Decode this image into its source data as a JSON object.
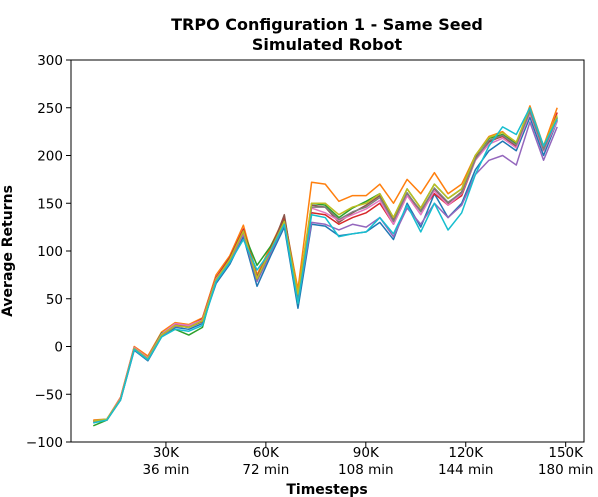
{
  "chart_data": {
    "type": "line",
    "title": "TRPO Configuration 1 - Same Seed",
    "subtitle": "Simulated Robot",
    "x_label": "Timesteps",
    "y_label": "Average Returns",
    "x": [
      8192,
      12288,
      16384,
      20480,
      24576,
      28672,
      32768,
      36864,
      40960,
      45056,
      49152,
      53248,
      57344,
      61440,
      65536,
      69632,
      73728,
      77824,
      81920,
      86016,
      90112,
      94208,
      98304,
      102400,
      106496,
      110592,
      114688,
      118784,
      122880,
      126976,
      131072,
      135168,
      139264,
      143360,
      147456
    ],
    "xlim": [
      1500,
      155500
    ],
    "xticks": [
      {
        "value": 30000,
        "label": "30K\n36 min"
      },
      {
        "value": 60000,
        "label": "60K\n72 min"
      },
      {
        "value": 90000,
        "label": "90K\n108 min"
      },
      {
        "value": 120000,
        "label": "120K\n144 min"
      },
      {
        "value": 150000,
        "label": "150K\n180 min"
      }
    ],
    "ylim": [
      -100,
      300
    ],
    "yticks": [
      {
        "value": -100,
        "label": "−100"
      },
      {
        "value": -50,
        "label": "−50"
      },
      0,
      50,
      100,
      150,
      200,
      250,
      300
    ],
    "grid": false,
    "series": [
      {
        "color": "#1f77b4",
        "values": [
          -80,
          -76,
          -56,
          -4,
          -15,
          10,
          20,
          18,
          24,
          66,
          86,
          115,
          63,
          95,
          125,
          40,
          128,
          126,
          116,
          118,
          120,
          130,
          112,
          150,
          125,
          160,
          135,
          150,
          185,
          205,
          215,
          205,
          240,
          200,
          236
        ]
      },
      {
        "color": "#ff7f0e",
        "values": [
          -77,
          -76,
          -53,
          0,
          -10,
          15,
          25,
          23,
          30,
          75,
          95,
          127,
          75,
          105,
          135,
          60,
          172,
          170,
          152,
          158,
          158,
          170,
          150,
          175,
          160,
          182,
          160,
          170,
          200,
          220,
          225,
          212,
          252,
          210,
          250
        ]
      },
      {
        "color": "#2ca02c",
        "values": [
          -83,
          -77,
          -55,
          -2,
          -12,
          14,
          18,
          12,
          20,
          72,
          92,
          120,
          85,
          105,
          132,
          45,
          150,
          148,
          135,
          145,
          152,
          160,
          135,
          165,
          145,
          170,
          155,
          165,
          200,
          218,
          222,
          212,
          248,
          205,
          240
        ]
      },
      {
        "color": "#d62728",
        "values": [
          -78,
          -77,
          -54,
          -1,
          -13,
          13,
          23,
          21,
          29,
          72,
          93,
          123,
          72,
          102,
          136,
          52,
          140,
          138,
          128,
          135,
          140,
          150,
          128,
          158,
          142,
          160,
          148,
          158,
          195,
          215,
          220,
          210,
          245,
          205,
          245
        ]
      },
      {
        "color": "#9467bd",
        "values": [
          -79,
          -76,
          -55,
          -3,
          -14,
          11,
          21,
          21,
          27,
          68,
          88,
          118,
          68,
          98,
          128,
          48,
          130,
          128,
          122,
          128,
          125,
          135,
          115,
          145,
          128,
          150,
          135,
          148,
          180,
          195,
          200,
          190,
          235,
          195,
          230
        ]
      },
      {
        "color": "#8c564b",
        "values": [
          -78,
          -77,
          -56,
          -2,
          -14,
          12,
          22,
          20,
          26,
          70,
          92,
          121,
          73,
          100,
          138,
          52,
          148,
          146,
          130,
          140,
          148,
          158,
          133,
          160,
          142,
          165,
          150,
          162,
          198,
          214,
          221,
          208,
          246,
          207,
          237
        ]
      },
      {
        "color": "#e377c2",
        "values": [
          -78,
          -76,
          -54,
          -1,
          -12,
          13,
          24,
          22,
          28,
          71,
          90,
          119,
          71,
          101,
          129,
          50,
          145,
          140,
          132,
          138,
          144,
          153,
          128,
          158,
          138,
          163,
          148,
          160,
          195,
          212,
          218,
          208,
          244,
          205,
          236
        ]
      },
      {
        "color": "#7f7f7f",
        "values": [
          -78,
          -76,
          -55,
          -2,
          -13,
          12,
          22,
          20,
          27,
          70,
          90,
          120,
          70,
          100,
          130,
          50,
          146,
          146,
          133,
          141,
          146,
          156,
          131,
          161,
          141,
          166,
          151,
          161,
          196,
          216,
          221,
          211,
          246,
          206,
          239
        ]
      },
      {
        "color": "#bcbd22",
        "values": [
          -78,
          -76,
          -55,
          -2,
          -13,
          12,
          22,
          20,
          27,
          70,
          91,
          121,
          71,
          101,
          131,
          55,
          150,
          150,
          138,
          146,
          150,
          160,
          135,
          165,
          145,
          170,
          155,
          165,
          200,
          219,
          224,
          214,
          250,
          210,
          242
        ]
      },
      {
        "color": "#17becf",
        "values": [
          -80,
          -77,
          -56,
          -3,
          -14,
          10,
          18,
          16,
          22,
          68,
          88,
          112,
          80,
          100,
          128,
          45,
          138,
          135,
          115,
          118,
          120,
          135,
          118,
          148,
          120,
          150,
          122,
          140,
          180,
          210,
          230,
          222,
          250,
          210,
          238
        ]
      }
    ]
  }
}
